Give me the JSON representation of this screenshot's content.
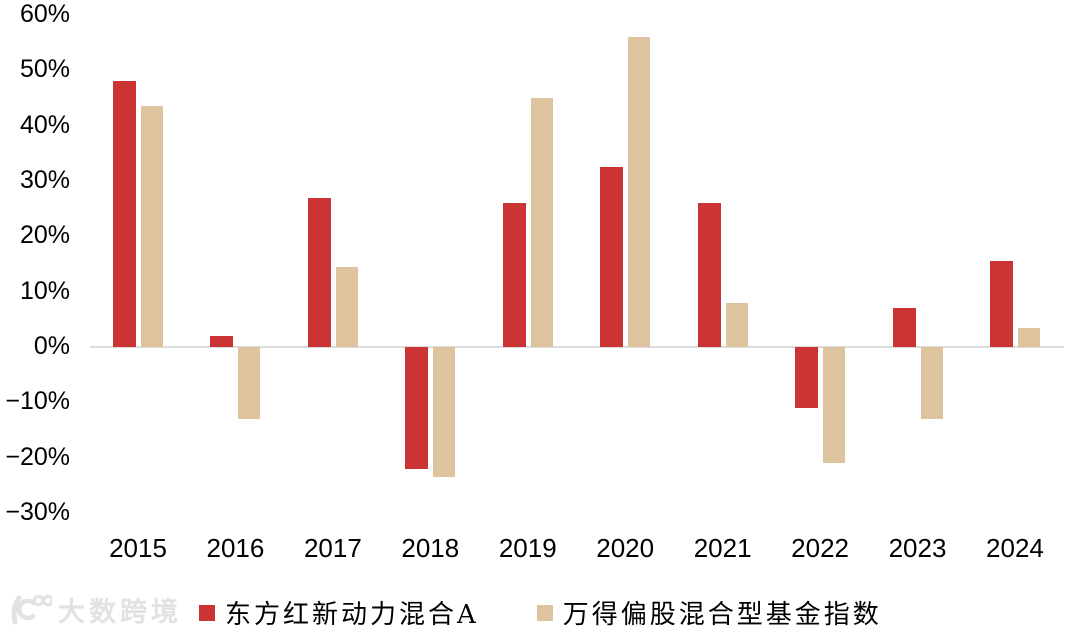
{
  "chart_data": {
    "type": "bar",
    "categories": [
      "2015",
      "2016",
      "2017",
      "2018",
      "2019",
      "2020",
      "2021",
      "2022",
      "2023",
      "2024"
    ],
    "series": [
      {
        "name": "东方红新动力混合A",
        "color": "#cb3434",
        "values": [
          48,
          2,
          27,
          -22,
          26,
          32.5,
          26,
          -11,
          7,
          15.5
        ]
      },
      {
        "name": "万得偏股混合型基金指数",
        "color": "#dec49e",
        "values": [
          43.5,
          -13,
          14.5,
          -23.5,
          45,
          56,
          8,
          -21,
          -13,
          3.5
        ]
      }
    ],
    "title": "",
    "xlabel": "",
    "ylabel": "",
    "ylim": [
      -30,
      60
    ],
    "ytick_step": 10,
    "ytick_labels": [
      "60%",
      "50%",
      "40%",
      "30%",
      "20%",
      "10%",
      "0%",
      "−10%",
      "−20%",
      "−30%"
    ],
    "grid": false,
    "legend_position": "bottom",
    "axis_line_color": "#dcdcdc",
    "value_format": "percent"
  },
  "watermark": {
    "text": "大数跨境"
  }
}
